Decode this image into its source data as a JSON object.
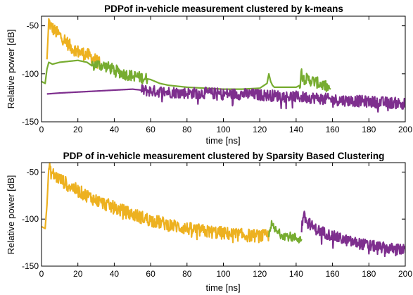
{
  "chart_data": [
    {
      "type": "line",
      "title": "PDPof in-vehicle measurement clustered by k-means",
      "xlabel": "time [ns]",
      "ylabel": "Relative power [dB]",
      "xlim": [
        0,
        200
      ],
      "ylim": [
        -150,
        -40
      ],
      "xticks": [
        "0",
        "20",
        "40",
        "60",
        "80",
        "100",
        "120",
        "140",
        "160",
        "180",
        "200"
      ],
      "yticks": [
        "-50",
        "-100",
        "-150"
      ],
      "grid": false,
      "series": [
        {
          "color": "#EDB120",
          "x": [
            3,
            4,
            5,
            7,
            10,
            13,
            16,
            20,
            25,
            30,
            32
          ],
          "y": [
            -85,
            -45,
            -50,
            -55,
            -60,
            -65,
            -72,
            -77,
            -80,
            -86,
            -90
          ],
          "noise": 7,
          "noise_from": 4
        },
        {
          "color": "#77AC30",
          "x": [
            0,
            2,
            3,
            4,
            6,
            10,
            15,
            20,
            25,
            28,
            30,
            35,
            40,
            45,
            50,
            55,
            60,
            65,
            70,
            80,
            90,
            100,
            110,
            120,
            124,
            125,
            126,
            127,
            128,
            130,
            135,
            140,
            142,
            143,
            144,
            145,
            150,
            155,
            158,
            159
          ],
          "y": [
            -108,
            -110,
            -95,
            -88,
            -90,
            -88,
            -87,
            -86,
            -88,
            -92,
            -90,
            -92,
            -96,
            -100,
            -102,
            -104,
            -106,
            -110,
            -112,
            -114,
            -115,
            -116,
            -116,
            -115,
            -110,
            -100,
            -108,
            -112,
            -114,
            -114,
            -114,
            -114,
            -112,
            -98,
            -102,
            -105,
            -108,
            -112,
            -115,
            -116
          ],
          "noise": 0,
          "noisy_ranges": [
            [
              28,
              58
            ],
            [
              142,
              158
            ]
          ]
        },
        {
          "color": "#7E2F8E",
          "x": [
            3,
            10,
            20,
            30,
            40,
            50,
            55,
            60,
            70,
            80,
            90,
            100,
            110,
            120,
            130,
            140,
            150,
            160,
            170,
            180,
            190,
            200
          ],
          "y": [
            -121,
            -120,
            -119,
            -118,
            -117,
            -116,
            -117,
            -118,
            -119,
            -120,
            -120,
            -121,
            -121,
            -122,
            -123,
            -124,
            -125,
            -127,
            -128,
            -129,
            -130,
            -131
          ],
          "noise": 0,
          "noisy_ranges": [
            [
              55,
              200
            ]
          ]
        }
      ]
    },
    {
      "type": "line",
      "title": "PDP of in-vehicle measurement clustered by Sparsity Based Clustering",
      "xlabel": "time [ns]",
      "ylabel": "Relative power [dB]",
      "xlim": [
        0,
        200
      ],
      "ylim": [
        -150,
        -40
      ],
      "xticks": [
        "0",
        "20",
        "40",
        "60",
        "80",
        "100",
        "120",
        "140",
        "160",
        "180",
        "200"
      ],
      "yticks": [
        "-50",
        "-100",
        "-150"
      ],
      "grid": false,
      "series": [
        {
          "color": "#EDB120",
          "x": [
            0,
            2,
            3,
            4,
            5,
            8,
            12,
            16,
            20,
            30,
            40,
            50,
            60,
            70,
            80,
            90,
            100,
            110,
            120,
            125
          ],
          "y": [
            -108,
            -110,
            -85,
            -45,
            -50,
            -55,
            -60,
            -65,
            -70,
            -80,
            -88,
            -95,
            -101,
            -106,
            -110,
            -113,
            -115,
            -117,
            -118,
            -118
          ],
          "noise": 7,
          "noise_from": 4
        },
        {
          "color": "#77AC30",
          "x": [
            125,
            126,
            127,
            130,
            135,
            140,
            143
          ],
          "y": [
            -118,
            -105,
            -108,
            -115,
            -118,
            -120,
            -122
          ],
          "noise": 5,
          "noise_from": 125
        },
        {
          "color": "#7E2F8E",
          "x": [
            143,
            144,
            145,
            150,
            160,
            170,
            180,
            190,
            200
          ],
          "y": [
            -110,
            -95,
            -100,
            -110,
            -118,
            -124,
            -128,
            -131,
            -133
          ],
          "noise": 6,
          "noise_from": 143
        }
      ]
    }
  ]
}
